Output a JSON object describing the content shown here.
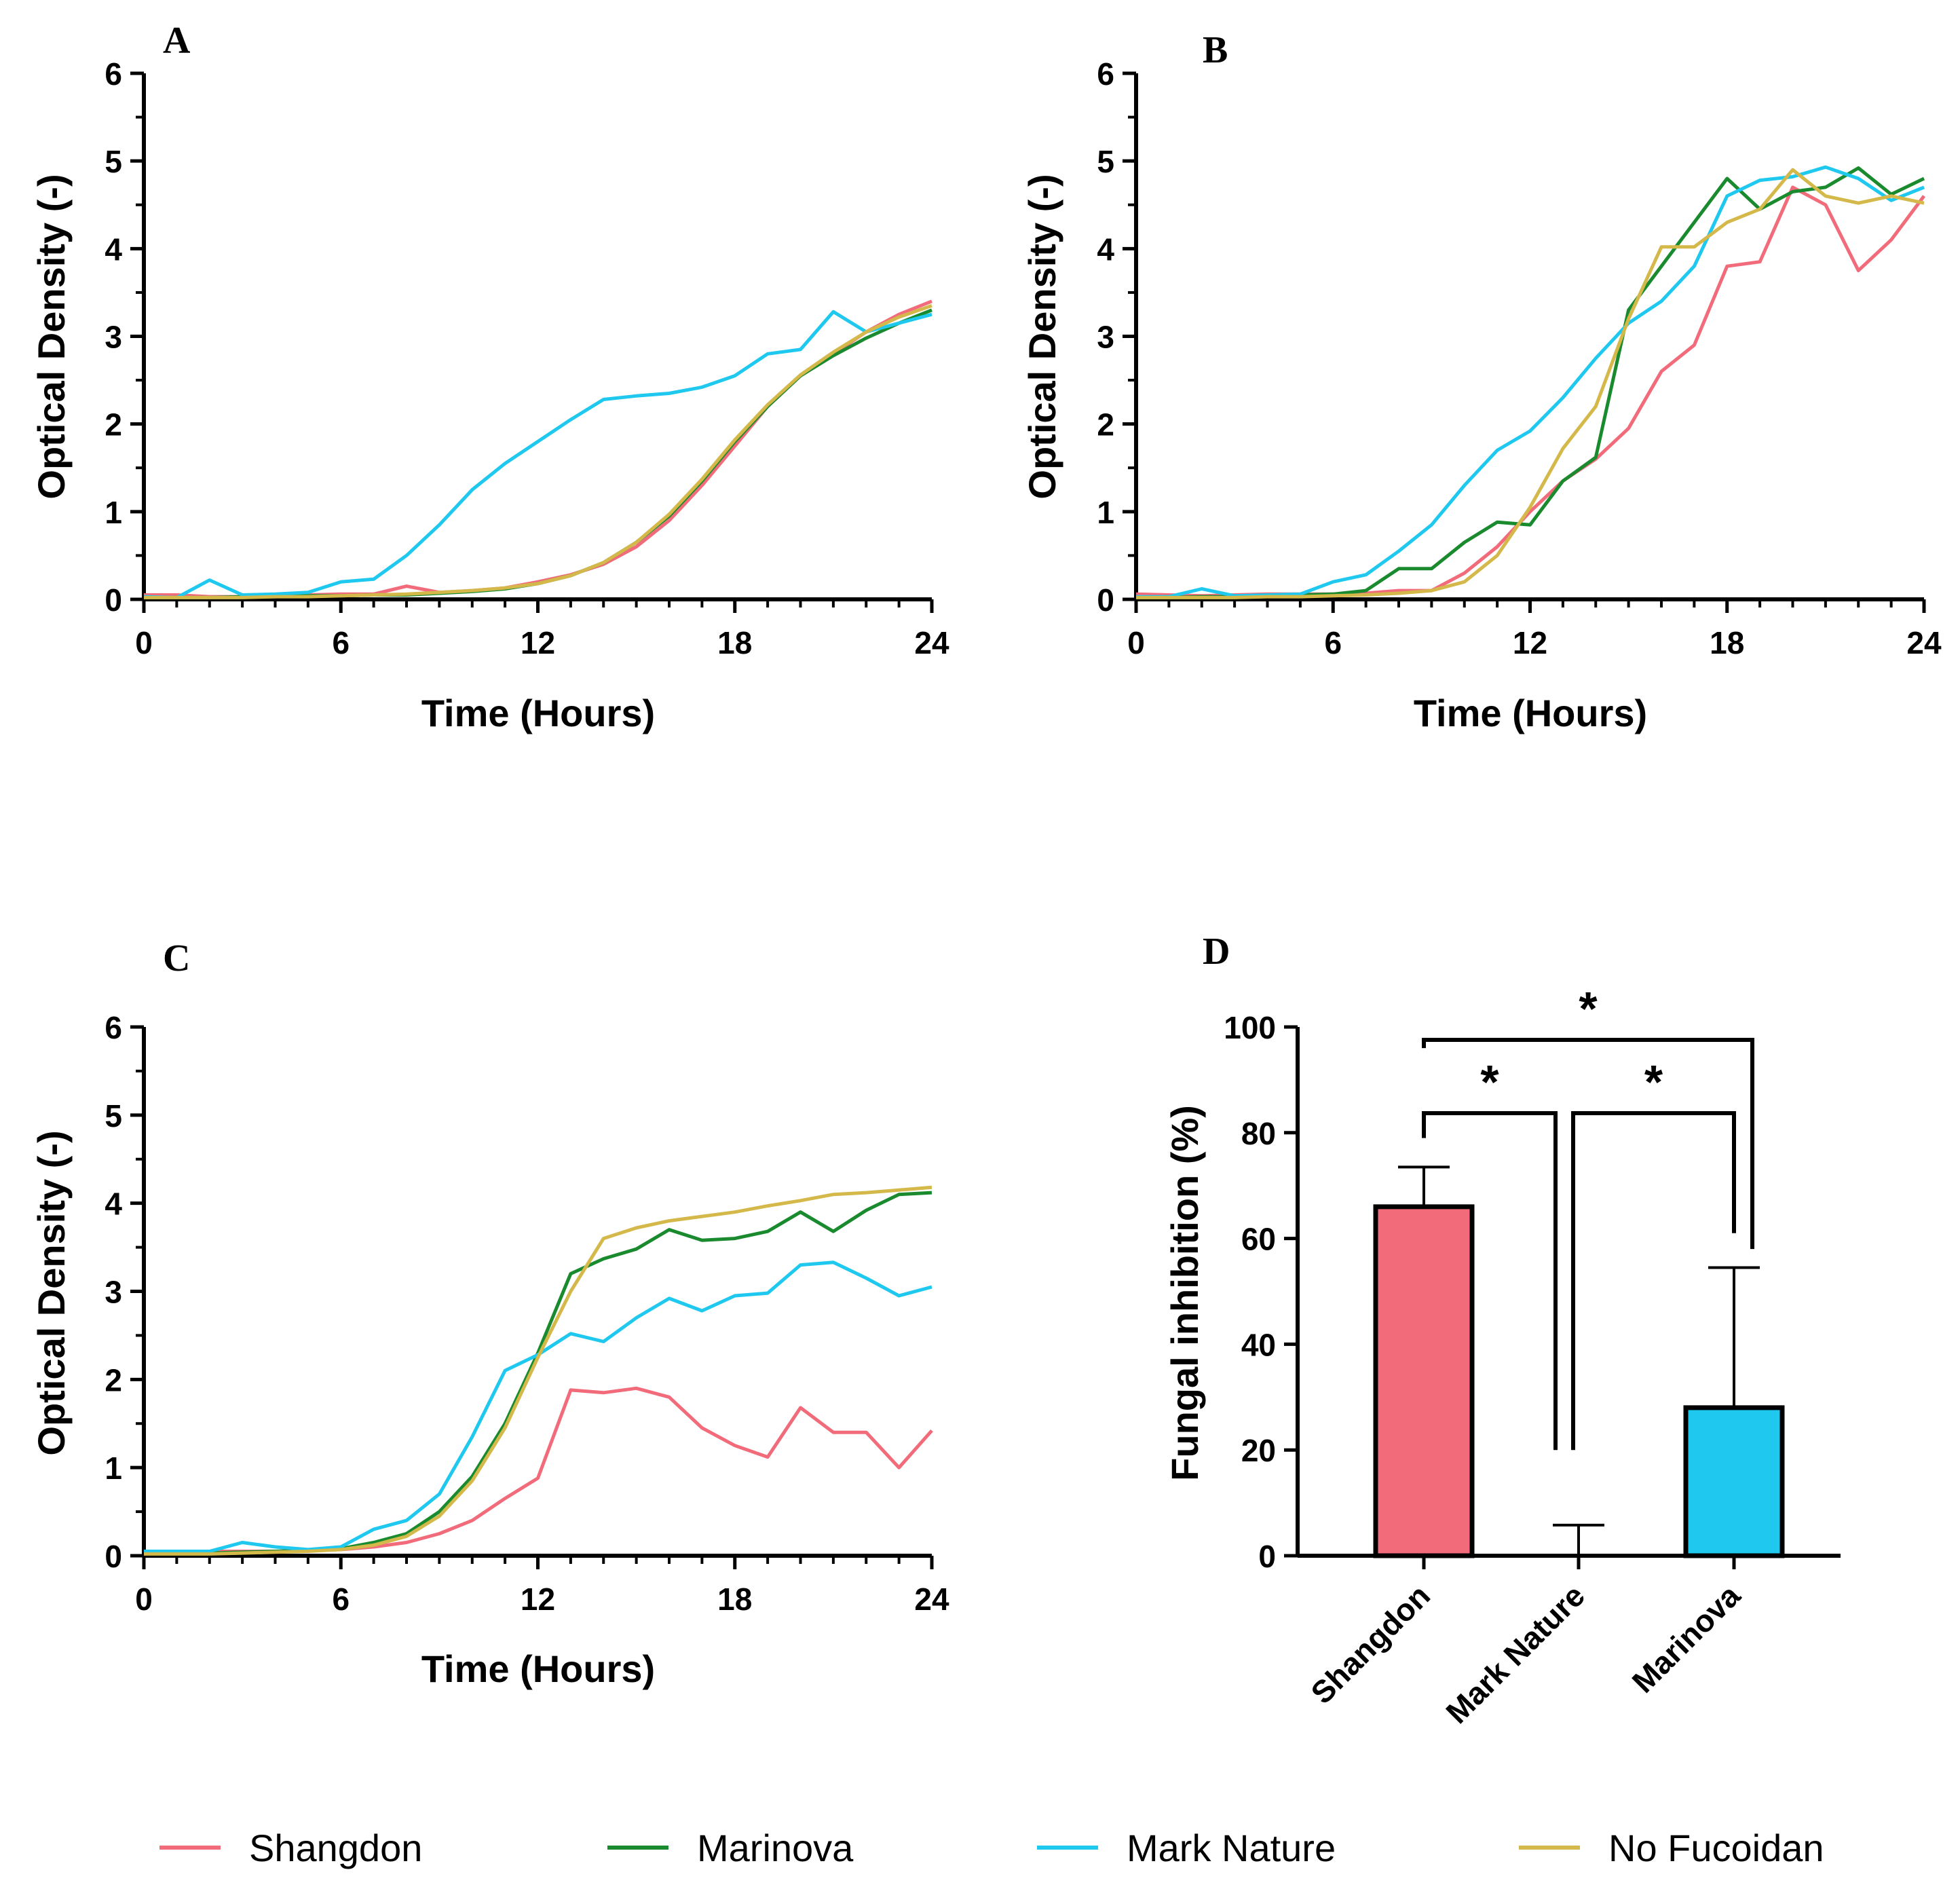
{
  "colors": {
    "Shangdon": "#f26b7a",
    "Marinova": "#1a8a2e",
    "Mark Nature": "#1ec8ef",
    "No Fucoidan": "#d4b94a",
    "axis": "#000000"
  },
  "legend": {
    "position": "bottom",
    "items": [
      {
        "name": "Shangdon",
        "color": "#f26b7a"
      },
      {
        "name": "Marinova",
        "color": "#1a8a2e"
      },
      {
        "name": "Mark Nature",
        "color": "#1ec8ef"
      },
      {
        "name": "No Fucoidan",
        "color": "#d4b94a"
      }
    ]
  },
  "chart_data": [
    {
      "panel": "A",
      "type": "line",
      "xlabel": "Time (Hours)",
      "ylabel": "Optical Density (-)",
      "xlim": [
        0,
        24
      ],
      "ylim": [
        0,
        6
      ],
      "xticks": [
        "0",
        "6",
        "12",
        "18",
        "24"
      ],
      "yticks": [
        "0",
        "1",
        "2",
        "3",
        "4",
        "5",
        "6"
      ],
      "grid": false,
      "x": [
        0,
        1,
        2,
        3,
        4,
        5,
        6,
        7,
        8,
        9,
        10,
        11,
        12,
        13,
        14,
        15,
        16,
        17,
        18,
        19,
        20,
        21,
        22,
        23,
        24
      ],
      "series": [
        {
          "name": "Shangdon",
          "values": [
            0.05,
            0.05,
            0.03,
            0.03,
            0.04,
            0.05,
            0.06,
            0.06,
            0.15,
            0.08,
            0.1,
            0.13,
            0.2,
            0.28,
            0.4,
            0.6,
            0.9,
            1.3,
            1.75,
            2.2,
            2.55,
            2.8,
            3.05,
            3.25,
            3.4
          ]
        },
        {
          "name": "Marinova",
          "values": [
            0.02,
            0.02,
            0.02,
            0.03,
            0.03,
            0.04,
            0.04,
            0.05,
            0.05,
            0.07,
            0.09,
            0.12,
            0.18,
            0.27,
            0.42,
            0.65,
            0.95,
            1.35,
            1.8,
            2.2,
            2.55,
            2.78,
            2.98,
            3.15,
            3.3
          ]
        },
        {
          "name": "Mark Nature",
          "values": [
            0.03,
            0.02,
            0.22,
            0.05,
            0.06,
            0.08,
            0.2,
            0.23,
            0.5,
            0.85,
            1.25,
            1.55,
            1.8,
            2.05,
            2.28,
            2.32,
            2.35,
            2.42,
            2.55,
            2.8,
            2.85,
            3.28,
            3.05,
            3.15,
            3.25
          ]
        },
        {
          "name": "No Fucoidan",
          "values": [
            0.02,
            0.02,
            0.02,
            0.02,
            0.03,
            0.03,
            0.04,
            0.05,
            0.06,
            0.08,
            0.1,
            0.13,
            0.18,
            0.27,
            0.42,
            0.65,
            0.97,
            1.37,
            1.82,
            2.22,
            2.56,
            2.82,
            3.05,
            3.22,
            3.35
          ]
        }
      ]
    },
    {
      "panel": "B",
      "type": "line",
      "xlabel": "Time (Hours)",
      "ylabel": "Optical Density (-)",
      "xlim": [
        0,
        24
      ],
      "ylim": [
        0,
        6
      ],
      "xticks": [
        "0",
        "6",
        "12",
        "18",
        "24"
      ],
      "yticks": [
        "0",
        "1",
        "2",
        "3",
        "4",
        "5",
        "6"
      ],
      "grid": false,
      "x": [
        0,
        1,
        2,
        3,
        4,
        5,
        6,
        7,
        8,
        9,
        10,
        11,
        12,
        13,
        14,
        15,
        16,
        17,
        18,
        19,
        20,
        21,
        22,
        23,
        24
      ],
      "series": [
        {
          "name": "Shangdon",
          "values": [
            0.06,
            0.05,
            0.04,
            0.05,
            0.06,
            0.06,
            0.06,
            0.07,
            0.1,
            0.1,
            0.3,
            0.6,
            1.0,
            1.35,
            1.6,
            1.95,
            2.6,
            2.9,
            3.8,
            3.85,
            4.7,
            4.5,
            3.75,
            4.1,
            4.6
          ]
        },
        {
          "name": "Marinova",
          "values": [
            0.02,
            0.02,
            0.03,
            0.03,
            0.04,
            0.05,
            0.06,
            0.1,
            0.35,
            0.35,
            0.65,
            0.88,
            0.85,
            1.35,
            1.62,
            3.3,
            3.8,
            4.3,
            4.8,
            4.45,
            4.65,
            4.7,
            4.92,
            4.62,
            4.8
          ]
        },
        {
          "name": "Mark Nature",
          "values": [
            0.03,
            0.03,
            0.12,
            0.04,
            0.05,
            0.06,
            0.2,
            0.28,
            0.55,
            0.85,
            1.3,
            1.7,
            1.92,
            2.3,
            2.75,
            3.15,
            3.4,
            3.8,
            4.6,
            4.78,
            4.82,
            4.93,
            4.8,
            4.55,
            4.7
          ]
        },
        {
          "name": "No Fucoidan",
          "values": [
            0.02,
            0.02,
            0.02,
            0.02,
            0.03,
            0.03,
            0.04,
            0.05,
            0.07,
            0.1,
            0.2,
            0.5,
            1.05,
            1.72,
            2.2,
            3.2,
            4.02,
            4.02,
            4.3,
            4.45,
            4.9,
            4.6,
            4.52,
            4.6,
            4.52
          ]
        }
      ]
    },
    {
      "panel": "C",
      "type": "line",
      "xlabel": "Time (Hours)",
      "ylabel": "Optical Density (-)",
      "xlim": [
        0,
        24
      ],
      "ylim": [
        0,
        6
      ],
      "xticks": [
        "0",
        "6",
        "12",
        "18",
        "24"
      ],
      "yticks": [
        "0",
        "1",
        "2",
        "3",
        "4",
        "5",
        "6"
      ],
      "grid": false,
      "x": [
        0,
        1,
        2,
        3,
        4,
        5,
        6,
        7,
        8,
        9,
        10,
        11,
        12,
        13,
        14,
        15,
        16,
        17,
        18,
        19,
        20,
        21,
        22,
        23,
        24
      ],
      "series": [
        {
          "name": "Shangdon",
          "values": [
            0.05,
            0.05,
            0.05,
            0.05,
            0.05,
            0.06,
            0.07,
            0.1,
            0.15,
            0.25,
            0.4,
            0.65,
            0.88,
            1.88,
            1.85,
            1.9,
            1.8,
            1.45,
            1.25,
            1.12,
            1.68,
            1.4,
            1.4,
            1.0,
            1.42
          ]
        },
        {
          "name": "Marinova",
          "values": [
            0.03,
            0.03,
            0.03,
            0.04,
            0.05,
            0.06,
            0.08,
            0.15,
            0.25,
            0.5,
            0.9,
            1.5,
            2.3,
            3.2,
            3.37,
            3.48,
            3.7,
            3.58,
            3.6,
            3.68,
            3.9,
            3.68,
            3.92,
            4.1,
            4.12
          ]
        },
        {
          "name": "Mark Nature",
          "values": [
            0.05,
            0.05,
            0.05,
            0.15,
            0.1,
            0.07,
            0.1,
            0.3,
            0.4,
            0.7,
            1.35,
            2.1,
            2.28,
            2.52,
            2.43,
            2.7,
            2.92,
            2.78,
            2.95,
            2.98,
            3.3,
            3.33,
            3.15,
            2.95,
            3.05
          ]
        },
        {
          "name": "No Fucoidan",
          "values": [
            0.02,
            0.02,
            0.02,
            0.03,
            0.04,
            0.05,
            0.07,
            0.12,
            0.22,
            0.45,
            0.85,
            1.45,
            2.25,
            3.0,
            3.6,
            3.72,
            3.8,
            3.85,
            3.9,
            3.97,
            4.03,
            4.1,
            4.12,
            4.15,
            4.18
          ]
        }
      ]
    },
    {
      "panel": "D",
      "type": "bar",
      "ylabel": "Fungal inhibition (%)",
      "ylim": [
        0,
        100
      ],
      "yticks": [
        "0",
        "20",
        "40",
        "60",
        "80",
        "100"
      ],
      "grid": false,
      "categories": [
        "Shangdon",
        "Mark Nature",
        "Marinova"
      ],
      "values": [
        66,
        0,
        28
      ],
      "error": [
        7.5,
        5.8,
        26.5
      ],
      "bar_colors": [
        "#f26b7a",
        "#ffffff",
        "#1ec8ef"
      ],
      "significance": [
        {
          "from": "Shangdon",
          "to": "Mark Nature",
          "label": "*"
        },
        {
          "from": "Mark Nature",
          "to": "Marinova",
          "label": "*"
        },
        {
          "from": "Shangdon",
          "to": "Marinova",
          "label": "*"
        }
      ]
    }
  ]
}
